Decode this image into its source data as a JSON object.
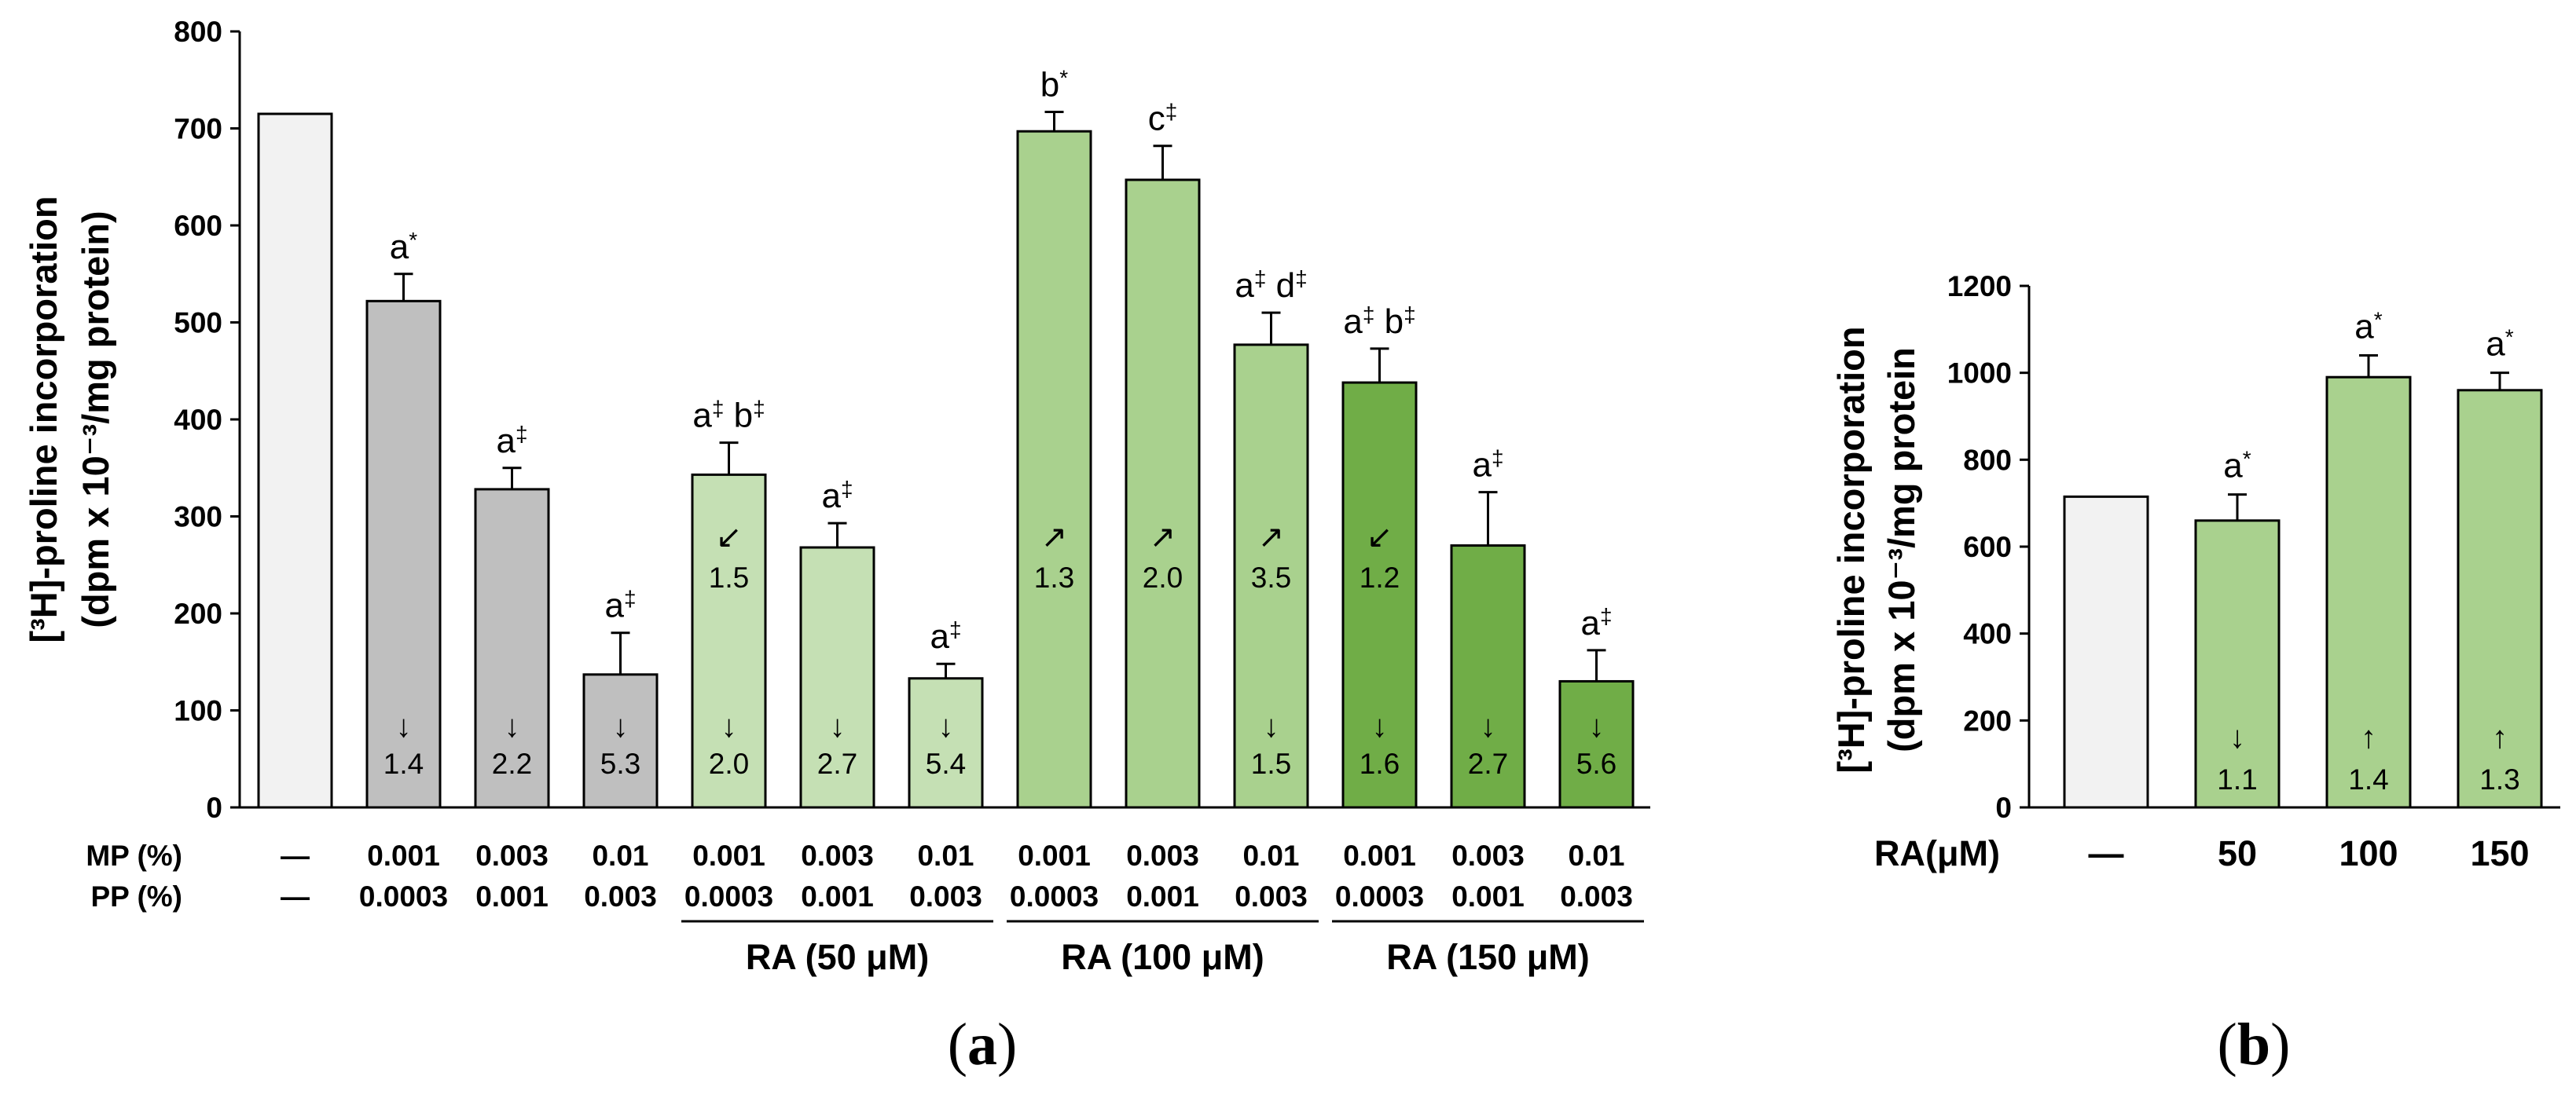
{
  "colors": {
    "control": "#f2f2f2",
    "mp_pp": "#bfbfbf",
    "ra50": "#c5e0b4",
    "ra100": "#a9d18e",
    "ra150": "#70ad47",
    "outline": "#000000"
  },
  "panel_labels": {
    "a": "a",
    "b": "b"
  },
  "chart_data": [
    {
      "type": "bar",
      "panel": "a",
      "ylabel_line1": "[³H]-proline incorporation",
      "ylabel_line2": "(dpm x 10⁻³/mg protein)",
      "ylim": [
        0,
        800
      ],
      "yticks": [
        "0",
        "100",
        "200",
        "300",
        "400",
        "500",
        "600",
        "700",
        "800"
      ],
      "row_labels": {
        "mp": "MP (%)",
        "pp": "PP (%)"
      },
      "bars": [
        {
          "value": 715,
          "error": 0,
          "color_key": "control",
          "mp": "—",
          "pp": "—",
          "sig": "",
          "sig_sup": "",
          "sig2": "",
          "sig2_sup": "",
          "fold_mid": "",
          "mid_arrow": "",
          "fold_low": "",
          "low_arrow": ""
        },
        {
          "value": 522,
          "error": 28,
          "color_key": "mp_pp",
          "mp": "0.001",
          "pp": "0.0003",
          "sig": "a",
          "sig_sup": "*",
          "sig2": "",
          "sig2_sup": "",
          "fold_mid": "",
          "mid_arrow": "",
          "fold_low": "1.4",
          "low_arrow": "↓"
        },
        {
          "value": 328,
          "error": 22,
          "color_key": "mp_pp",
          "mp": "0.003",
          "pp": "0.001",
          "sig": "a",
          "sig_sup": "‡",
          "sig2": "",
          "sig2_sup": "",
          "fold_mid": "",
          "mid_arrow": "",
          "fold_low": "2.2",
          "low_arrow": "↓"
        },
        {
          "value": 137,
          "error": 43,
          "color_key": "mp_pp",
          "mp": "0.01",
          "pp": "0.003",
          "sig": "a",
          "sig_sup": "‡",
          "sig2": "",
          "sig2_sup": "",
          "fold_mid": "",
          "mid_arrow": "",
          "fold_low": "5.3",
          "low_arrow": "↓"
        },
        {
          "value": 343,
          "error": 33,
          "color_key": "ra50",
          "mp": "0.001",
          "pp": "0.0003",
          "sig": "a",
          "sig_sup": "‡",
          "sig2": "b",
          "sig2_sup": "‡",
          "fold_mid": "1.5",
          "mid_arrow": "↙",
          "fold_low": "2.0",
          "low_arrow": "↓"
        },
        {
          "value": 268,
          "error": 25,
          "color_key": "ra50",
          "mp": "0.003",
          "pp": "0.001",
          "sig": "a",
          "sig_sup": "‡",
          "sig2": "",
          "sig2_sup": "",
          "fold_mid": "",
          "mid_arrow": "",
          "fold_low": "2.7",
          "low_arrow": "↓"
        },
        {
          "value": 133,
          "error": 15,
          "color_key": "ra50",
          "mp": "0.01",
          "pp": "0.003",
          "sig": "a",
          "sig_sup": "‡",
          "sig2": "",
          "sig2_sup": "",
          "fold_mid": "",
          "mid_arrow": "",
          "fold_low": "5.4",
          "low_arrow": "↓"
        },
        {
          "value": 697,
          "error": 20,
          "color_key": "ra100",
          "mp": "0.001",
          "pp": "0.0003",
          "sig": "b",
          "sig_sup": "*",
          "sig2": "",
          "sig2_sup": "",
          "fold_mid": "1.3",
          "mid_arrow": "↗",
          "fold_low": "",
          "low_arrow": ""
        },
        {
          "value": 647,
          "error": 35,
          "color_key": "ra100",
          "mp": "0.003",
          "pp": "0.001",
          "sig": "c",
          "sig_sup": "‡",
          "sig2": "",
          "sig2_sup": "",
          "fold_mid": "2.0",
          "mid_arrow": "↗",
          "fold_low": "",
          "low_arrow": ""
        },
        {
          "value": 477,
          "error": 33,
          "color_key": "ra100",
          "mp": "0.01",
          "pp": "0.003",
          "sig": "a",
          "sig_sup": "‡",
          "sig2": "d",
          "sig2_sup": "‡",
          "fold_mid": "3.5",
          "mid_arrow": "↗",
          "fold_low": "1.5",
          "low_arrow": "↓"
        },
        {
          "value": 438,
          "error": 35,
          "color_key": "ra150",
          "mp": "0.001",
          "pp": "0.0003",
          "sig": "a",
          "sig_sup": "‡",
          "sig2": "b",
          "sig2_sup": "‡",
          "fold_mid": "1.2",
          "mid_arrow": "↙",
          "fold_low": "1.6",
          "low_arrow": "↓"
        },
        {
          "value": 270,
          "error": 55,
          "color_key": "ra150",
          "mp": "0.003",
          "pp": "0.001",
          "sig": "a",
          "sig_sup": "‡",
          "sig2": "",
          "sig2_sup": "",
          "fold_mid": "",
          "mid_arrow": "",
          "fold_low": "2.7",
          "low_arrow": "↓"
        },
        {
          "value": 130,
          "error": 32,
          "color_key": "ra150",
          "mp": "0.01",
          "pp": "0.003",
          "sig": "a",
          "sig_sup": "‡",
          "sig2": "",
          "sig2_sup": "",
          "fold_mid": "",
          "mid_arrow": "",
          "fold_low": "5.6",
          "low_arrow": "↓"
        }
      ],
      "groups": [
        {
          "label": "RA (50 μM)",
          "from": 4,
          "to": 6
        },
        {
          "label": "RA (100 μM)",
          "from": 7,
          "to": 9
        },
        {
          "label": "RA (150 μM)",
          "from": 10,
          "to": 12
        }
      ]
    },
    {
      "type": "bar",
      "panel": "b",
      "ylabel_line1": "[³H]-proline incorporation",
      "ylabel_line2": "(dpm x 10⁻³/mg protein",
      "ylim": [
        0,
        1200
      ],
      "yticks": [
        "0",
        "200",
        "400",
        "600",
        "800",
        "1000",
        "1200"
      ],
      "row_label": "RA(μM)",
      "bars": [
        {
          "value": 715,
          "error": 0,
          "color_key": "control",
          "category": "—",
          "sig": "",
          "sig_sup": "",
          "fold": "",
          "arrow": ""
        },
        {
          "value": 660,
          "error": 60,
          "color_key": "ra100",
          "category": "50",
          "sig": "a",
          "sig_sup": "*",
          "fold": "1.1",
          "arrow": "↓"
        },
        {
          "value": 990,
          "error": 50,
          "color_key": "ra100",
          "category": "100",
          "sig": "a",
          "sig_sup": "*",
          "fold": "1.4",
          "arrow": "↑"
        },
        {
          "value": 960,
          "error": 40,
          "color_key": "ra100",
          "category": "150",
          "sig": "a",
          "sig_sup": "*",
          "fold": "1.3",
          "arrow": "↑"
        }
      ]
    }
  ]
}
